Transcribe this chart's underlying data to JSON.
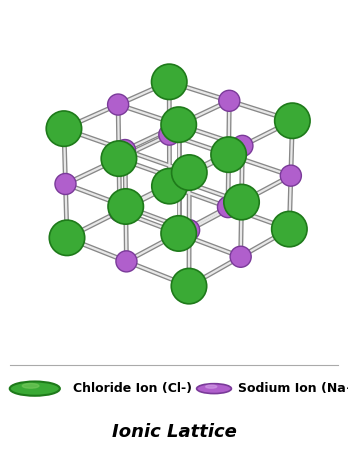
{
  "title": "Ionic Lattice",
  "cl_color": "#3aaa35",
  "cl_color_dark": "#1e7a1a",
  "cl_color_light": "#7acc5f",
  "na_color": "#b05fcc",
  "na_color_dark": "#7a3a99",
  "na_color_light": "#d4a0e8",
  "rod_color": "#c0c0c0",
  "rod_color_dark": "#888888",
  "background": "#ffffff",
  "legend_cl_label": "Chloride Ion (Cl-)",
  "legend_na_label": "Sodium Ion (Na+)",
  "title_fontsize": 13,
  "legend_fontsize": 9,
  "grid_size": 3,
  "figsize": [
    3.48,
    4.5
  ],
  "dpi": 100,
  "elev": 25,
  "azim": -50,
  "cl_scatter_size": 650,
  "na_scatter_size": 230,
  "rod_lw_outer": 3.5,
  "rod_lw_inner": 1.6
}
